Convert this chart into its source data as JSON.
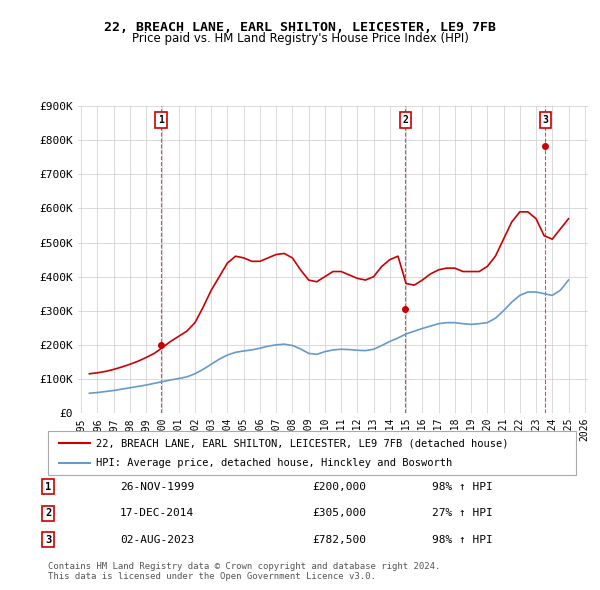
{
  "title": "22, BREACH LANE, EARL SHILTON, LEICESTER, LE9 7FB",
  "subtitle": "Price paid vs. HM Land Registry's House Price Index (HPI)",
  "ylabel": "",
  "ylim": [
    0,
    900000
  ],
  "yticks": [
    0,
    100000,
    200000,
    300000,
    400000,
    500000,
    600000,
    700000,
    800000,
    900000
  ],
  "ytick_labels": [
    "£0",
    "£100K",
    "£200K",
    "£300K",
    "£400K",
    "£500K",
    "£600K",
    "£700K",
    "£800K",
    "£900K"
  ],
  "sale_color": "#cc0000",
  "hpi_color": "#6699cc",
  "legend_sale": "22, BREACH LANE, EARL SHILTON, LEICESTER, LE9 7FB (detached house)",
  "legend_hpi": "HPI: Average price, detached house, Hinckley and Bosworth",
  "transactions": [
    {
      "label": "1",
      "date": "26-NOV-1999",
      "price": 200000,
      "pct": "98%",
      "dir": "↑",
      "year_x": 1999.9
    },
    {
      "label": "2",
      "date": "17-DEC-2014",
      "price": 305000,
      "pct": "27%",
      "dir": "↑",
      "year_x": 2014.96
    },
    {
      "label": "3",
      "date": "02-AUG-2023",
      "price": 782500,
      "pct": "98%",
      "dir": "↑",
      "year_x": 2023.58
    }
  ],
  "footer": "Contains HM Land Registry data © Crown copyright and database right 2024.\nThis data is licensed under the Open Government Licence v3.0.",
  "hpi_data": {
    "years": [
      1995.5,
      1996.0,
      1996.5,
      1997.0,
      1997.5,
      1998.0,
      1998.5,
      1999.0,
      1999.5,
      2000.0,
      2000.5,
      2001.0,
      2001.5,
      2002.0,
      2002.5,
      2003.0,
      2003.5,
      2004.0,
      2004.5,
      2005.0,
      2005.5,
      2006.0,
      2006.5,
      2007.0,
      2007.5,
      2008.0,
      2008.5,
      2009.0,
      2009.5,
      2010.0,
      2010.5,
      2011.0,
      2011.5,
      2012.0,
      2012.5,
      2013.0,
      2013.5,
      2014.0,
      2014.5,
      2015.0,
      2015.5,
      2016.0,
      2016.5,
      2017.0,
      2017.5,
      2018.0,
      2018.5,
      2019.0,
      2019.5,
      2020.0,
      2020.5,
      2021.0,
      2021.5,
      2022.0,
      2022.5,
      2023.0,
      2023.5,
      2024.0,
      2024.5,
      2025.0
    ],
    "values": [
      58000,
      60000,
      63000,
      66000,
      70000,
      74000,
      78000,
      82000,
      87000,
      92000,
      97000,
      101000,
      106000,
      115000,
      128000,
      143000,
      158000,
      170000,
      178000,
      182000,
      185000,
      190000,
      196000,
      200000,
      202000,
      198000,
      188000,
      175000,
      172000,
      180000,
      185000,
      187000,
      186000,
      184000,
      183000,
      187000,
      198000,
      210000,
      220000,
      232000,
      240000,
      248000,
      255000,
      262000,
      265000,
      265000,
      262000,
      260000,
      262000,
      265000,
      278000,
      300000,
      325000,
      345000,
      355000,
      355000,
      350000,
      345000,
      360000,
      390000
    ]
  },
  "sale_data": {
    "years": [
      1995.5,
      1996.0,
      1996.5,
      1997.0,
      1997.5,
      1998.0,
      1998.5,
      1999.0,
      1999.5,
      2000.0,
      2000.5,
      2001.0,
      2001.5,
      2002.0,
      2002.5,
      2003.0,
      2003.5,
      2004.0,
      2004.5,
      2005.0,
      2005.5,
      2006.0,
      2006.5,
      2007.0,
      2007.5,
      2008.0,
      2008.5,
      2009.0,
      2009.5,
      2010.0,
      2010.5,
      2011.0,
      2011.5,
      2012.0,
      2012.5,
      2013.0,
      2013.5,
      2014.0,
      2014.5,
      2015.0,
      2015.5,
      2016.0,
      2016.5,
      2017.0,
      2017.5,
      2018.0,
      2018.5,
      2019.0,
      2019.5,
      2020.0,
      2020.5,
      2021.0,
      2021.5,
      2022.0,
      2022.5,
      2023.0,
      2023.5,
      2024.0,
      2024.5,
      2025.0
    ],
    "values": [
      115000,
      118000,
      122000,
      128000,
      135000,
      143000,
      152000,
      163000,
      175000,
      192000,
      210000,
      225000,
      240000,
      265000,
      310000,
      360000,
      400000,
      440000,
      460000,
      455000,
      445000,
      445000,
      455000,
      465000,
      468000,
      455000,
      420000,
      390000,
      385000,
      400000,
      415000,
      415000,
      405000,
      395000,
      390000,
      400000,
      430000,
      450000,
      460000,
      380000,
      375000,
      390000,
      408000,
      420000,
      425000,
      425000,
      415000,
      415000,
      415000,
      430000,
      460000,
      510000,
      560000,
      590000,
      590000,
      570000,
      520000,
      510000,
      540000,
      570000
    ]
  },
  "xtick_years": [
    1995,
    1996,
    1997,
    1998,
    1999,
    2000,
    2001,
    2002,
    2003,
    2004,
    2005,
    2006,
    2007,
    2008,
    2009,
    2010,
    2011,
    2012,
    2013,
    2014,
    2015,
    2016,
    2017,
    2018,
    2019,
    2020,
    2021,
    2022,
    2023,
    2024,
    2025,
    2026
  ],
  "xlim": [
    1994.8,
    2026.2
  ]
}
